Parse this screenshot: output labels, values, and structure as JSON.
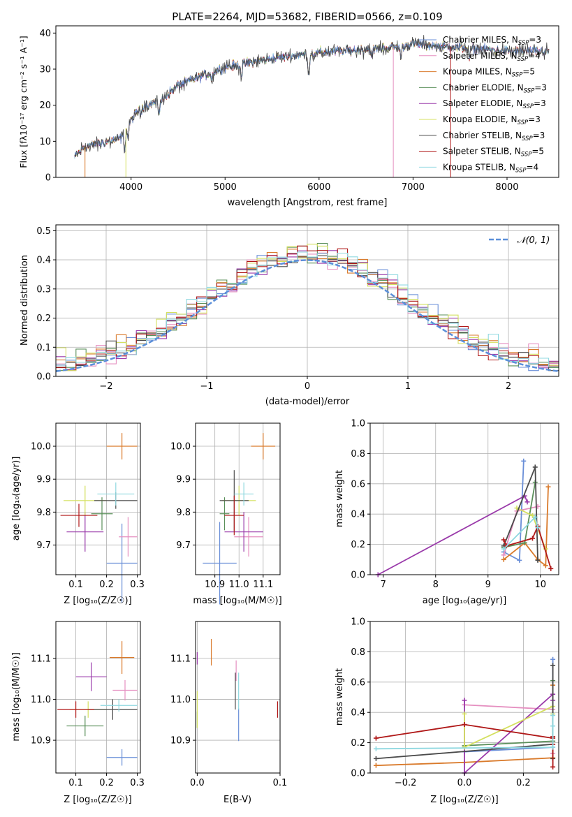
{
  "title": "PLATE=2264, MJD=53682, FIBERID=0566, z=0.109",
  "colors": {
    "chabrier_miles": "#6a8fd8",
    "salpeter_miles": "#e58fc0",
    "kroupa_miles": "#d97a2b",
    "chabrier_elodie": "#5a8f5a",
    "salpeter_elodie": "#9a3aaa",
    "kroupa_elodie": "#d4e060",
    "chabrier_stelib": "#4a4a4a",
    "salpeter_stelib": "#b01818",
    "kroupa_stelib": "#8fd8e0",
    "normal_curve": "#5b8fd9"
  },
  "legend_entries": [
    {
      "base": "Chabrier MILES, N",
      "sub": "SSP",
      "tail": "=3"
    },
    {
      "base": "Salpeter MILES, N",
      "sub": "SSP",
      "tail": "=4"
    },
    {
      "base": "Kroupa MILES, N",
      "sub": "SSP",
      "tail": "=5"
    },
    {
      "base": "Chabrier ELODIE, N",
      "sub": "SSP",
      "tail": "=3"
    },
    {
      "base": "Salpeter ELODIE, N",
      "sub": "SSP",
      "tail": "=3"
    },
    {
      "base": "Kroupa ELODIE, N",
      "sub": "SSP",
      "tail": "=3"
    },
    {
      "base": "Chabrier STELIB, N",
      "sub": "SSP",
      "tail": "=3"
    },
    {
      "base": "Salpeter STELIB, N",
      "sub": "SSP",
      "tail": "=5"
    },
    {
      "base": "Kroupa STELIB, N",
      "sub": "SSP",
      "tail": "=4"
    }
  ],
  "chart_data": [
    {
      "id": "spectrum",
      "type": "line",
      "xlabel": "wavelength [Angstrom, rest frame]",
      "ylabel": "Flux [fλ10⁻¹⁷ erg cm⁻² s⁻¹ A⁻¹]",
      "xlim": [
        3200,
        8550
      ],
      "ylim": [
        0,
        42
      ],
      "xticks": [
        4000,
        5000,
        6000,
        7000,
        8000
      ],
      "yticks": [
        0,
        10,
        20,
        30,
        40
      ],
      "continuum": {
        "x": [
          3400,
          3500,
          3700,
          3900,
          3960,
          4100,
          4300,
          4500,
          4800,
          5000,
          5200,
          5500,
          5800,
          6000,
          6200,
          6500,
          6800,
          7000,
          7200,
          7500,
          7800,
          8000,
          8300,
          8500
        ],
        "y": [
          5.5,
          8.5,
          9.5,
          11.0,
          14.5,
          19.5,
          21.0,
          25.5,
          28.5,
          30.5,
          31.5,
          33.0,
          34.0,
          34.5,
          35.0,
          35.5,
          36.0,
          37.0,
          36.5,
          36.0,
          35.5,
          35.0,
          35.0,
          35.0
        ]
      },
      "wavelength_range": [
        3400,
        8450
      ]
    },
    {
      "id": "residuals",
      "type": "histogram",
      "xlabel": "(data-model)/error",
      "ylabel": "Normed distribution",
      "xlim": [
        -2.5,
        2.5
      ],
      "ylim": [
        0,
        0.52
      ],
      "xticks": [
        -2,
        -1,
        0,
        1,
        2
      ],
      "yticks": [
        0.0,
        0.1,
        0.2,
        0.3,
        0.4,
        0.5
      ],
      "normal_label": "𝒩(0, 1)",
      "bin_width": 0.1
    },
    {
      "id": "age_vs_Z",
      "type": "scatter",
      "xlabel": "Z [log₁₀(Z/Z☉)]",
      "ylabel": "age  [log₁₀(age/yr)]",
      "xlim": [
        0.035,
        0.31
      ],
      "ylim": [
        9.61,
        10.07
      ],
      "xticks": [
        0.1,
        0.2,
        0.3
      ],
      "yticks": [
        9.7,
        9.8,
        9.9,
        10.0
      ],
      "points": [
        {
          "series": "chabrier_miles",
          "x": 0.25,
          "y": 9.645,
          "ex": 0.05,
          "ey": 0.24
        },
        {
          "series": "salpeter_miles",
          "x": 0.27,
          "y": 9.725,
          "ex": 0.03,
          "ey": 0.12
        },
        {
          "series": "kroupa_miles",
          "x": 0.25,
          "y": 10.0,
          "ex": 0.05,
          "ey": 0.08
        },
        {
          "series": "chabrier_elodie",
          "x": 0.185,
          "y": 9.795,
          "ex": 0.035,
          "ey": 0.1
        },
        {
          "series": "salpeter_elodie",
          "x": 0.13,
          "y": 9.74,
          "ex": 0.06,
          "ey": 0.12
        },
        {
          "series": "kroupa_elodie",
          "x": 0.13,
          "y": 9.835,
          "ex": 0.07,
          "ey": 0.09
        },
        {
          "series": "chabrier_stelib",
          "x": 0.23,
          "y": 9.835,
          "ex": 0.07,
          "ey": 0.05
        },
        {
          "series": "salpeter_stelib",
          "x": 0.11,
          "y": 9.79,
          "ex": 0.06,
          "ey": 0.07
        },
        {
          "series": "kroupa_stelib",
          "x": 0.23,
          "y": 9.855,
          "ex": 0.06,
          "ey": 0.07
        }
      ]
    },
    {
      "id": "age_vs_mass",
      "type": "scatter",
      "xlabel": "mass [log₁₀(M/M☉)]",
      "ylabel": "",
      "xlim": [
        10.82,
        11.17
      ],
      "ylim": [
        9.61,
        10.07
      ],
      "xticks": [
        10.9,
        11.0,
        11.1
      ],
      "yticks": [
        9.7,
        9.8,
        9.9,
        10.0
      ],
      "points": [
        {
          "series": "chabrier_miles",
          "x": 10.92,
          "y": 9.645,
          "ex": 0.07,
          "ey": 0.25
        },
        {
          "series": "salpeter_miles",
          "x": 11.04,
          "y": 9.725,
          "ex": 0.06,
          "ey": 0.12
        },
        {
          "series": "kroupa_miles",
          "x": 11.1,
          "y": 10.0,
          "ex": 0.05,
          "ey": 0.08
        },
        {
          "series": "chabrier_elodie",
          "x": 10.94,
          "y": 9.795,
          "ex": 0.02,
          "ey": 0.1
        },
        {
          "series": "salpeter_elodie",
          "x": 11.02,
          "y": 9.74,
          "ex": 0.08,
          "ey": 0.12
        },
        {
          "series": "kroupa_elodie",
          "x": 11.0,
          "y": 9.835,
          "ex": 0.07,
          "ey": 0.09
        },
        {
          "series": "chabrier_stelib",
          "x": 10.98,
          "y": 9.835,
          "ex": 0.06,
          "ey": 0.185
        },
        {
          "series": "salpeter_stelib",
          "x": 10.98,
          "y": 9.79,
          "ex": 0.04,
          "ey": 0.12
        },
        {
          "series": "kroupa_stelib",
          "x": 11.02,
          "y": 9.855,
          "ex": 0.04,
          "ey": 0.07
        }
      ]
    },
    {
      "id": "massweight_vs_age",
      "type": "line",
      "xlabel": "age  [log₁₀(age/yr)]",
      "ylabel": "mass weight",
      "xlim": [
        6.75,
        10.35
      ],
      "ylim": [
        0,
        1
      ],
      "xticks": [
        7,
        8,
        9,
        10
      ],
      "yticks": [
        0.0,
        0.2,
        0.4,
        0.6,
        0.8,
        1.0
      ],
      "series": [
        {
          "series": "chabrier_miles",
          "x": [
            9.3,
            9.6,
            9.68
          ],
          "y": [
            0.15,
            0.095,
            0.75
          ]
        },
        {
          "series": "salpeter_miles",
          "x": [
            9.3,
            9.55,
            9.95
          ],
          "y": [
            0.13,
            0.42,
            0.45
          ]
        },
        {
          "series": "kroupa_miles",
          "x": [
            9.3,
            9.7,
            9.95,
            10.1,
            10.15
          ],
          "y": [
            0.1,
            0.21,
            0.1,
            0.06,
            0.58
          ]
        },
        {
          "series": "chabrier_elodie",
          "x": [
            9.3,
            9.7,
            9.9
          ],
          "y": [
            0.18,
            0.21,
            0.61
          ]
        },
        {
          "series": "salpeter_elodie",
          "x": [
            6.9,
            9.7,
            9.75
          ],
          "y": [
            0.0,
            0.52,
            0.48
          ]
        },
        {
          "series": "kroupa_elodie",
          "x": [
            9.55,
            9.85,
            10.1
          ],
          "y": [
            0.44,
            0.39,
            0.17
          ]
        },
        {
          "series": "chabrier_stelib",
          "x": [
            9.3,
            9.9,
            9.95
          ],
          "y": [
            0.19,
            0.71,
            0.095
          ]
        },
        {
          "series": "salpeter_stelib",
          "x": [
            9.3,
            9.35,
            9.85,
            9.95,
            10.2
          ],
          "y": [
            0.23,
            0.19,
            0.24,
            0.32,
            0.04
          ]
        },
        {
          "series": "kroupa_stelib",
          "x": [
            9.3,
            9.9,
            9.95
          ],
          "y": [
            0.17,
            0.38,
            0.31
          ]
        }
      ]
    },
    {
      "id": "mass_vs_Z",
      "type": "scatter",
      "xlabel": "Z [log₁₀(Z/Z☉)]",
      "ylabel": "mass [log₁₀(M/M☉)]",
      "xlim": [
        0.035,
        0.31
      ],
      "ylim": [
        10.82,
        11.19
      ],
      "xticks": [
        0.1,
        0.2,
        0.3
      ],
      "yticks": [
        10.9,
        11.0,
        11.1
      ],
      "points": [
        {
          "series": "chabrier_miles",
          "x": 0.25,
          "y": 10.858,
          "ex": 0.05,
          "ey": 0.04
        },
        {
          "series": "salpeter_miles",
          "x": 0.26,
          "y": 11.022,
          "ex": 0.04,
          "ey": 0.05
        },
        {
          "series": "kroupa_miles",
          "x": 0.25,
          "y": 11.102,
          "ex": 0.04,
          "ey": 0.08
        },
        {
          "series": "chabrier_elodie",
          "x": 0.13,
          "y": 10.935,
          "ex": 0.06,
          "ey": 0.05
        },
        {
          "series": "salpeter_elodie",
          "x": 0.15,
          "y": 11.055,
          "ex": 0.05,
          "ey": 0.07
        },
        {
          "series": "kroupa_elodie",
          "x": 0.14,
          "y": 10.975,
          "ex": 0.06,
          "ey": 0.04
        },
        {
          "series": "chabrier_stelib",
          "x": 0.22,
          "y": 10.975,
          "ex": 0.08,
          "ey": 0.05
        },
        {
          "series": "salpeter_stelib",
          "x": 0.1,
          "y": 10.975,
          "ex": 0.06,
          "ey": 0.04
        },
        {
          "series": "kroupa_stelib",
          "x": 0.24,
          "y": 10.985,
          "ex": 0.06,
          "ey": 0.03
        }
      ]
    },
    {
      "id": "mass_vs_ebv",
      "type": "scatter",
      "xlabel": "E(B-V)",
      "ylabel": "",
      "xlim": [
        -0.002,
        0.1
      ],
      "ylim": [
        10.82,
        11.19
      ],
      "xticks": [
        0.0,
        0.1
      ],
      "yticks": [
        10.9,
        11.0,
        11.1
      ],
      "points": [
        {
          "series": "chabrier_miles",
          "x": 0.05,
          "y": 10.938,
          "ex": 0.0,
          "ey": 0.08
        },
        {
          "series": "salpeter_miles",
          "x": 0.047,
          "y": 11.07,
          "ex": 0.0,
          "ey": 0.05
        },
        {
          "series": "kroupa_miles",
          "x": 0.017,
          "y": 11.115,
          "ex": 0.0,
          "ey": 0.065
        },
        {
          "series": "chabrier_elodie",
          "x": 0.0,
          "y": 10.95,
          "ex": 0.0,
          "ey": 0.04
        },
        {
          "series": "salpeter_elodie",
          "x": 0.0,
          "y": 11.1,
          "ex": 0.0,
          "ey": 0.03
        },
        {
          "series": "kroupa_elodie",
          "x": 0.0,
          "y": 10.975,
          "ex": 0.0,
          "ey": 0.09
        },
        {
          "series": "chabrier_stelib",
          "x": 0.046,
          "y": 11.02,
          "ex": 0.0,
          "ey": 0.09
        },
        {
          "series": "salpeter_stelib",
          "x": 0.097,
          "y": 10.975,
          "ex": 0.0,
          "ey": 0.04
        },
        {
          "series": "kroupa_stelib",
          "x": 0.05,
          "y": 11.02,
          "ex": 0.0,
          "ey": 0.09
        }
      ]
    },
    {
      "id": "massweight_vs_Z",
      "type": "line",
      "xlabel": "Z [log₁₀(Z/Z☉)]",
      "ylabel": "mass weight",
      "xlim": [
        -0.32,
        0.32
      ],
      "ylim": [
        0,
        1
      ],
      "xticks": [
        -0.2,
        0.0,
        0.2
      ],
      "yticks": [
        0.0,
        0.2,
        0.4,
        0.6,
        0.8,
        1.0
      ],
      "series": [
        {
          "series": "chabrier_miles",
          "x": [
            0.0,
            0.3,
            0.3,
            0.3
          ],
          "y": [
            0.14,
            0.17,
            0.75,
            0.1
          ]
        },
        {
          "series": "salpeter_miles",
          "x": [
            0.0,
            0.3,
            0.3
          ],
          "y": [
            0.45,
            0.42,
            0.13
          ]
        },
        {
          "series": "kroupa_miles",
          "x": [
            -0.3,
            0.0,
            0.3,
            0.3,
            0.3
          ],
          "y": [
            0.05,
            0.07,
            0.1,
            0.58,
            0.21
          ]
        },
        {
          "series": "chabrier_elodie",
          "x": [
            0.0,
            0.3,
            0.3
          ],
          "y": [
            0.18,
            0.21,
            0.61
          ]
        },
        {
          "series": "salpeter_elodie",
          "x": [
            0.0,
            0.0,
            0.3,
            0.3
          ],
          "y": [
            0.48,
            0.0,
            0.52,
            0.48
          ]
        },
        {
          "series": "kroupa_elodie",
          "x": [
            0.0,
            0.0,
            0.3,
            0.3
          ],
          "y": [
            0.39,
            0.17,
            0.44,
            0.39
          ]
        },
        {
          "series": "chabrier_stelib",
          "x": [
            -0.3,
            0.3,
            0.3,
            0.3
          ],
          "y": [
            0.095,
            0.19,
            0.71,
            0.095
          ]
        },
        {
          "series": "salpeter_stelib",
          "x": [
            -0.3,
            0.0,
            0.3,
            0.3,
            0.3,
            0.3
          ],
          "y": [
            0.23,
            0.32,
            0.23,
            0.19,
            0.24,
            0.04
          ]
        },
        {
          "series": "kroupa_stelib",
          "x": [
            -0.3,
            0.3,
            0.3,
            0.3
          ],
          "y": [
            0.16,
            0.17,
            0.38,
            0.31
          ]
        }
      ]
    }
  ]
}
